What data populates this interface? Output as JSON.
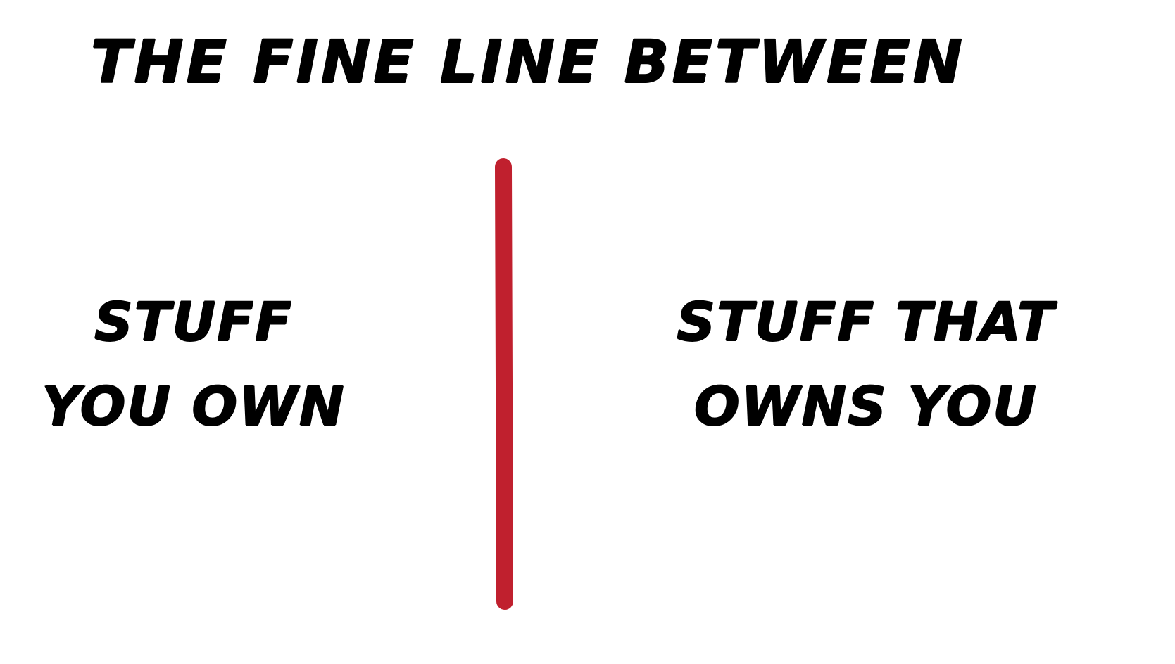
{
  "title": "The fine line between",
  "left": {
    "line1": "Stuff",
    "line2": "you own"
  },
  "right": {
    "line1": "Stuff that",
    "line2": "owns you"
  },
  "colors": {
    "text": "#000000",
    "divider": "#c0202e",
    "background": "#ffffff"
  }
}
